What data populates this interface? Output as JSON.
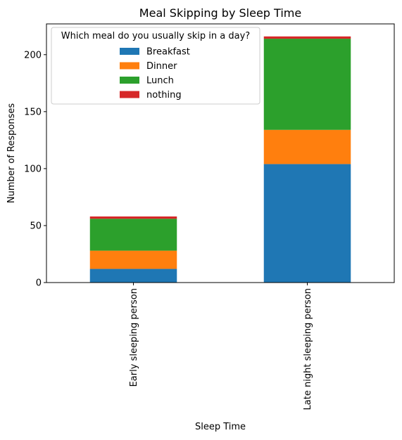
{
  "chart_data": {
    "type": "bar",
    "stacked": true,
    "title": "Meal Skipping by Sleep Time",
    "xlabel": "Sleep Time",
    "ylabel": "Number of Responses",
    "categories": [
      "Early sleeping person",
      "Late night sleeping person"
    ],
    "series": [
      {
        "name": "Breakfast",
        "values": [
          12,
          104
        ],
        "color": "#1f77b4"
      },
      {
        "name": "Dinner",
        "values": [
          16,
          30
        ],
        "color": "#ff7f0e"
      },
      {
        "name": "Lunch",
        "values": [
          28,
          80
        ],
        "color": "#2ca02c"
      },
      {
        "name": "nothing",
        "values": [
          2,
          2
        ],
        "color": "#d62728"
      }
    ],
    "ylim": [
      0,
      227
    ],
    "yticks": [
      0,
      50,
      100,
      150,
      200
    ],
    "grid": false,
    "legend": {
      "title": "Which meal do you usually skip in a day?",
      "placement": "upper-left"
    }
  }
}
